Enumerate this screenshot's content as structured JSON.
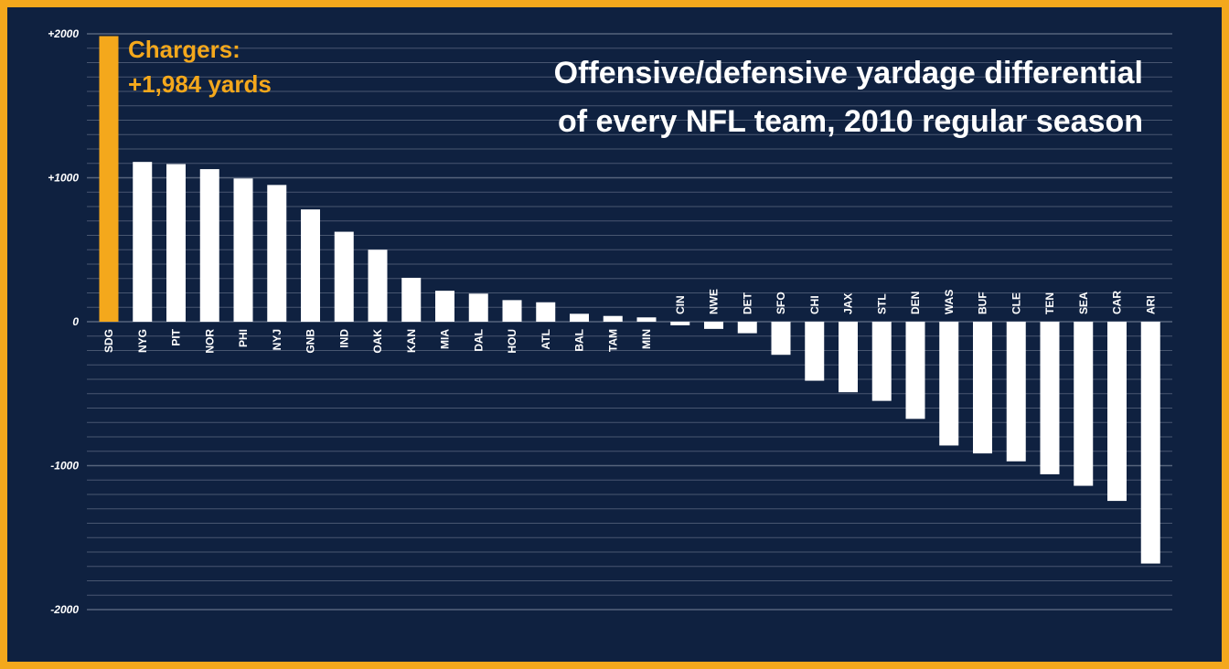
{
  "colors": {
    "background": "#0f2140",
    "border": "#f4a81c",
    "bar": "#ffffff",
    "highlight": "#f4a81c",
    "gridline": "#5b6880"
  },
  "chart_data": {
    "type": "bar",
    "title": [
      "Offensive/defensive yardage differential",
      "of every NFL team,  2010 regular season"
    ],
    "xlabel": "",
    "ylabel": "",
    "ylim": [
      -2000,
      2000
    ],
    "yticks": [
      2000,
      1000,
      0,
      -1000,
      -2000
    ],
    "ytick_labels": [
      "+2000",
      "+1000",
      "0",
      "-1000",
      "-2000"
    ],
    "grid": true,
    "categories": [
      "SDG",
      "NYG",
      "PIT",
      "NOR",
      "PHI",
      "NYJ",
      "GNB",
      "IND",
      "OAK",
      "KAN",
      "MIA",
      "DAL",
      "HOU",
      "ATL",
      "BAL",
      "TAM",
      "MIN",
      "CIN",
      "NWE",
      "DET",
      "SFO",
      "CHI",
      "JAX",
      "STL",
      "DEN",
      "WAS",
      "BUF",
      "CLE",
      "TEN",
      "SEA",
      "CAR",
      "ARI"
    ],
    "values": [
      1984,
      1110,
      1095,
      1060,
      995,
      950,
      780,
      625,
      500,
      305,
      215,
      195,
      150,
      135,
      55,
      40,
      30,
      -25,
      -50,
      -80,
      -230,
      -410,
      -490,
      -550,
      -675,
      -860,
      -915,
      -970,
      -1060,
      -1140,
      -1245,
      -1680
    ],
    "highlight_index": 0,
    "annotation": [
      "Chargers:",
      "+1,984 yards"
    ]
  }
}
